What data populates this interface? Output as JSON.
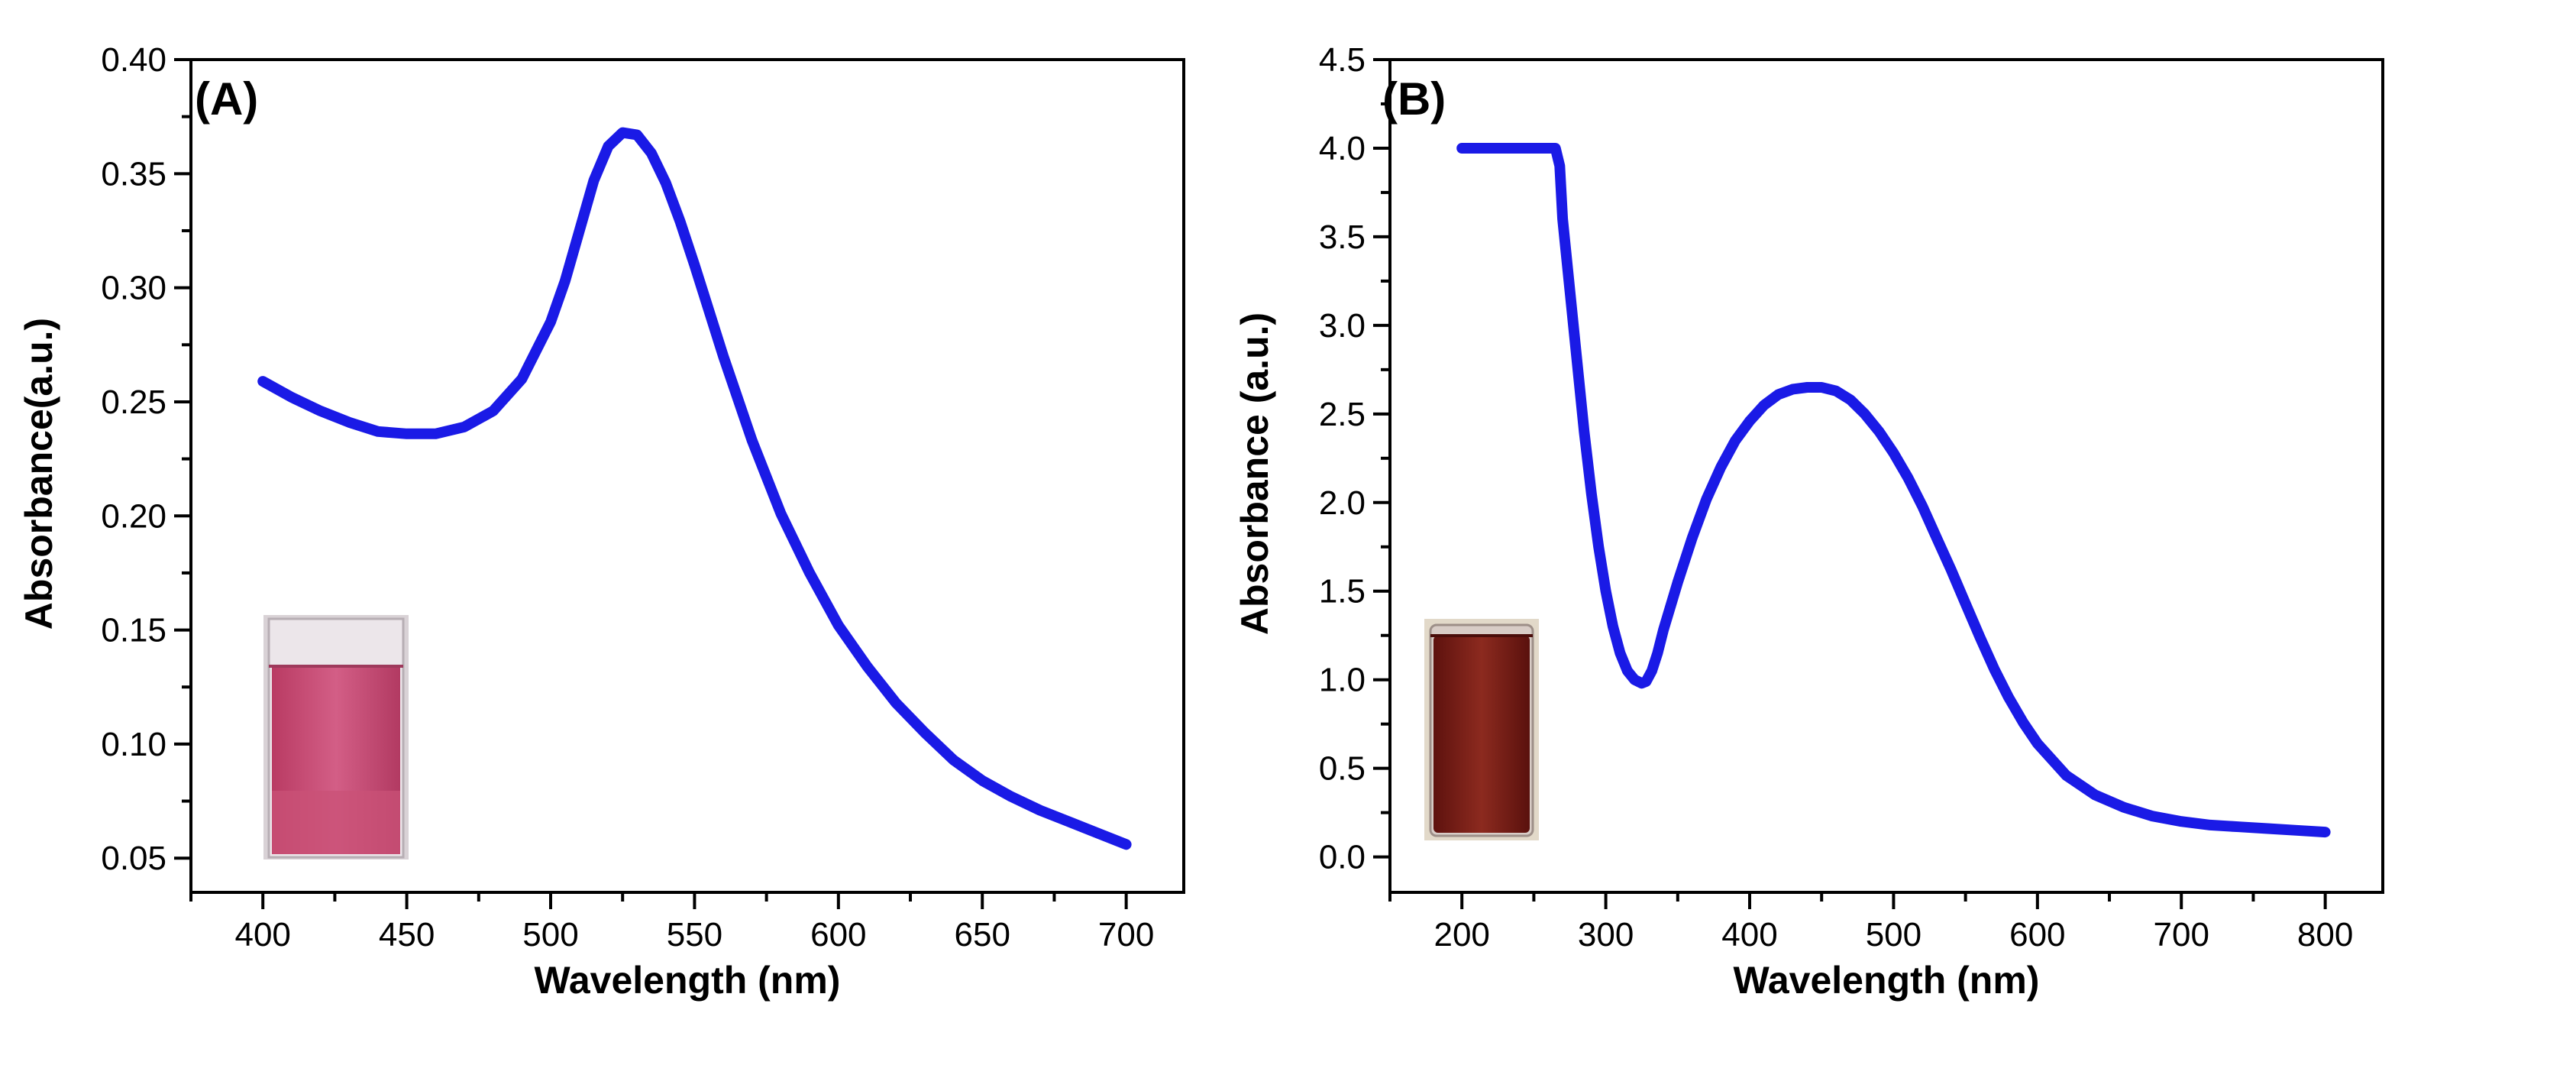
{
  "chart_data": [
    {
      "type": "line",
      "panel_label": "(A)",
      "title": "",
      "xlabel": "Wavelength (nm)",
      "ylabel": "Absorbance(a.u.)",
      "xlim": [
        375,
        720
      ],
      "ylim": [
        0.035,
        0.4
      ],
      "x_ticks": [
        400,
        450,
        500,
        550,
        600,
        650,
        700
      ],
      "x_tick_labels": [
        "400",
        "450",
        "500",
        "550",
        "600",
        "650",
        "700"
      ],
      "y_ticks": [
        0.05,
        0.1,
        0.15,
        0.2,
        0.25,
        0.3,
        0.35,
        0.4
      ],
      "y_tick_labels": [
        "0.05",
        "0.10",
        "0.15",
        "0.20",
        "0.25",
        "0.30",
        "0.35",
        "0.40"
      ],
      "series": [
        {
          "name": "Absorbance",
          "color": "#1a1ae6",
          "x": [
            400,
            410,
            420,
            430,
            440,
            450,
            460,
            470,
            480,
            490,
            500,
            505,
            510,
            515,
            520,
            525,
            530,
            535,
            540,
            545,
            550,
            560,
            570,
            580,
            590,
            600,
            610,
            620,
            630,
            640,
            650,
            660,
            670,
            680,
            690,
            700
          ],
          "y": [
            0.259,
            0.252,
            0.246,
            0.241,
            0.237,
            0.236,
            0.236,
            0.239,
            0.246,
            0.26,
            0.285,
            0.303,
            0.325,
            0.347,
            0.362,
            0.368,
            0.367,
            0.359,
            0.346,
            0.329,
            0.31,
            0.27,
            0.233,
            0.201,
            0.175,
            0.152,
            0.134,
            0.118,
            0.105,
            0.093,
            0.084,
            0.077,
            0.071,
            0.066,
            0.061,
            0.056
          ]
        }
      ],
      "inset": {
        "name": "pink-solution-vial",
        "liquid_color": "#c2456e",
        "glass_color": "#e8dfe4"
      }
    },
    {
      "type": "line",
      "panel_label": "(B)",
      "title": "",
      "xlabel": "Wavelength (nm)",
      "ylabel": "Absorbance (a.u.)",
      "xlim": [
        150,
        840
      ],
      "ylim": [
        -0.2,
        4.5
      ],
      "x_ticks": [
        200,
        300,
        400,
        500,
        600,
        700,
        800
      ],
      "x_tick_labels": [
        "200",
        "300",
        "400",
        "500",
        "600",
        "700",
        "800"
      ],
      "y_ticks": [
        0.0,
        0.5,
        1.0,
        1.5,
        2.0,
        2.5,
        3.0,
        3.5,
        4.0,
        4.5
      ],
      "y_tick_labels": [
        "0.0",
        "0.5",
        "1.0",
        "1.5",
        "2.0",
        "2.5",
        "3.0",
        "3.5",
        "4.0",
        "4.5"
      ],
      "series": [
        {
          "name": "Absorbance",
          "color": "#1a1ae6",
          "x": [
            200,
            220,
            240,
            260,
            265,
            268,
            270,
            275,
            280,
            285,
            290,
            295,
            300,
            305,
            310,
            315,
            320,
            325,
            328,
            332,
            336,
            340,
            350,
            360,
            370,
            380,
            390,
            400,
            410,
            420,
            430,
            440,
            450,
            460,
            470,
            480,
            490,
            500,
            510,
            520,
            530,
            540,
            550,
            560,
            570,
            580,
            590,
            600,
            620,
            640,
            660,
            680,
            700,
            720,
            740,
            760,
            780,
            800
          ],
          "y": [
            4.0,
            4.0,
            4.0,
            4.0,
            4.0,
            3.9,
            3.6,
            3.2,
            2.8,
            2.4,
            2.05,
            1.75,
            1.5,
            1.3,
            1.15,
            1.05,
            1.0,
            0.98,
            0.99,
            1.05,
            1.15,
            1.28,
            1.55,
            1.8,
            2.02,
            2.2,
            2.35,
            2.46,
            2.55,
            2.61,
            2.64,
            2.65,
            2.65,
            2.63,
            2.58,
            2.5,
            2.4,
            2.28,
            2.14,
            1.98,
            1.8,
            1.62,
            1.43,
            1.24,
            1.06,
            0.9,
            0.76,
            0.64,
            0.46,
            0.35,
            0.28,
            0.23,
            0.2,
            0.18,
            0.17,
            0.16,
            0.15,
            0.14
          ]
        }
      ],
      "inset": {
        "name": "brown-solution-vial",
        "liquid_color": "#7a1a14",
        "glass_color": "#d8ccc6"
      }
    }
  ]
}
